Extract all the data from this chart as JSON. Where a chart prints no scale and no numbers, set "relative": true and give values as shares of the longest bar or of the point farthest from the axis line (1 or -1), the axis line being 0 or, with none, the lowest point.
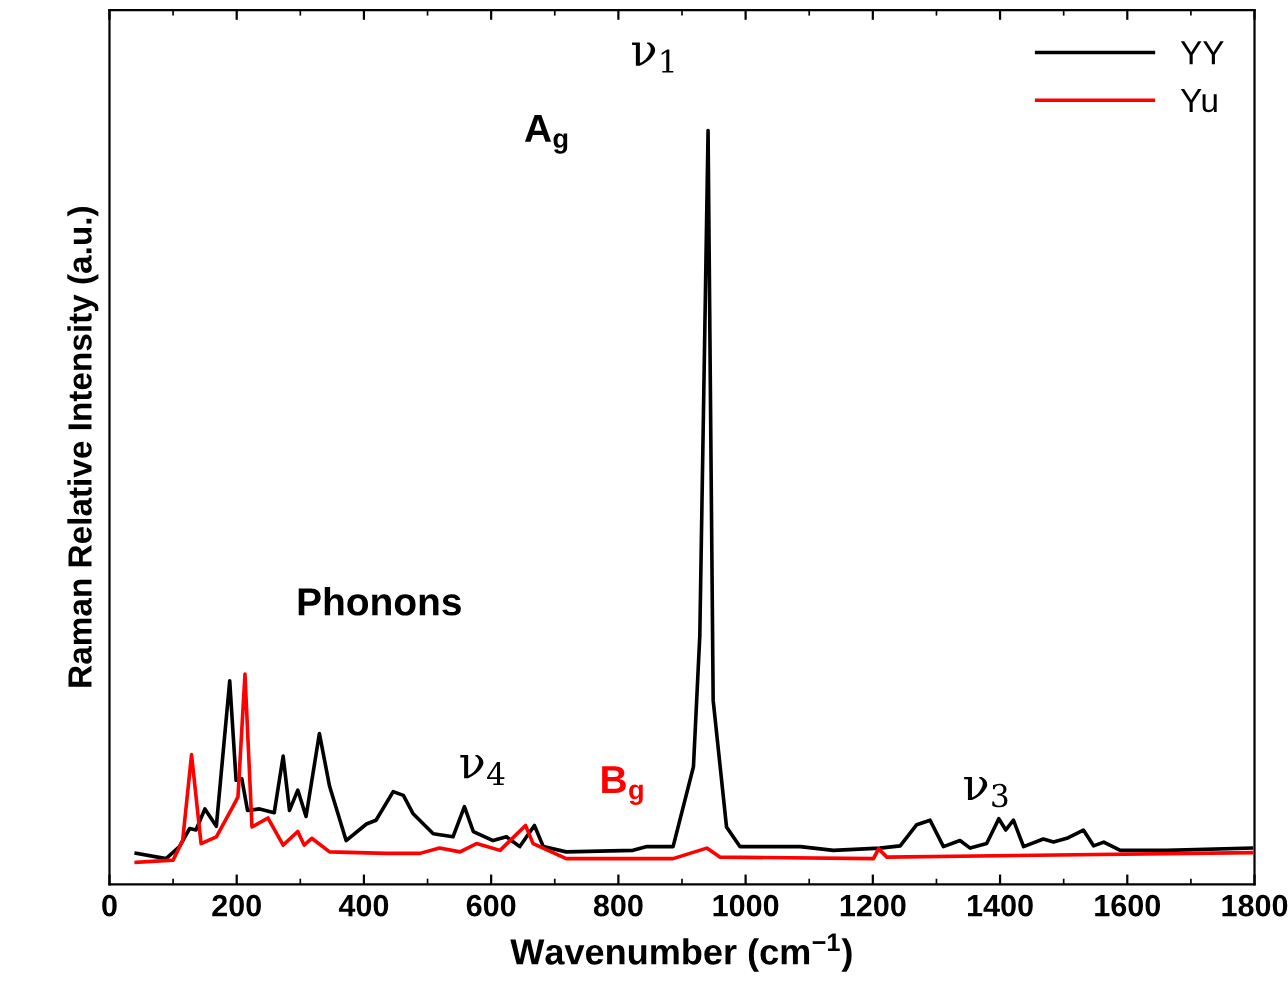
{
  "chart_data": {
    "type": "line",
    "relative": true,
    "xlabel": "Wavenumber (cm$^{−1}$)",
    "ylabel": "Raman Relative Intensity (a.u.)",
    "xlim": [
      0,
      1800
    ],
    "xticks": [
      0,
      200,
      400,
      600,
      800,
      1000,
      1200,
      1400,
      1600,
      1800
    ],
    "tick_labels": "x",
    "grid": false,
    "legend": "top right",
    "annotations": [
      "A$_{g}$",
      "ν$_{1}$",
      "Phonons",
      "ν$_{4}$",
      "B$_{g}$",
      "ν$_{3}$"
    ],
    "series": [
      {
        "name": "YY",
        "color": "#000000",
        "x": [
          42,
          89,
          110,
          126,
          136,
          150,
          168,
          189,
          199,
          208,
          217,
          236,
          259,
          273,
          283,
          296,
          309,
          330,
          346,
          372,
          404,
          419,
          446,
          462,
          477,
          509,
          540,
          558,
          572,
          603,
          624,
          645,
          668,
          682,
          718,
          823,
          845,
          886,
          918,
          928,
          941,
          949,
          970,
          991,
          1086,
          1138,
          1211,
          1243,
          1269,
          1290,
          1311,
          1337,
          1353,
          1379,
          1398,
          1409,
          1421,
          1437,
          1468,
          1484,
          1505,
          1531,
          1547,
          1563,
          1589,
          1662,
          1795
        ],
        "values": [
          0.041,
          0.034,
          0.05,
          0.074,
          0.072,
          0.1,
          0.077,
          0.27,
          0.138,
          0.14,
          0.098,
          0.1,
          0.095,
          0.17,
          0.098,
          0.125,
          0.09,
          0.2,
          0.13,
          0.058,
          0.08,
          0.085,
          0.123,
          0.118,
          0.094,
          0.067,
          0.063,
          0.103,
          0.07,
          0.058,
          0.063,
          0.05,
          0.078,
          0.05,
          0.043,
          0.045,
          0.05,
          0.05,
          0.156,
          0.33,
          1.0,
          0.244,
          0.076,
          0.05,
          0.05,
          0.045,
          0.048,
          0.051,
          0.079,
          0.085,
          0.05,
          0.058,
          0.048,
          0.054,
          0.087,
          0.072,
          0.085,
          0.05,
          0.06,
          0.056,
          0.061,
          0.072,
          0.051,
          0.056,
          0.045,
          0.045,
          0.048
        ]
      },
      {
        "name": "Yu",
        "color": "#ff0000",
        "x": [
          42,
          100,
          115,
          129,
          144,
          168,
          194,
          202,
          213,
          224,
          249,
          273,
          296,
          306,
          318,
          346,
          435,
          488,
          519,
          551,
          577,
          614,
          654,
          666,
          718,
          886,
          939,
          960,
          1201,
          1209,
          1222,
          1795
        ],
        "values": [
          0.029,
          0.032,
          0.058,
          0.172,
          0.054,
          0.063,
          0.103,
          0.116,
          0.279,
          0.076,
          0.088,
          0.052,
          0.07,
          0.052,
          0.061,
          0.043,
          0.041,
          0.041,
          0.048,
          0.043,
          0.054,
          0.045,
          0.078,
          0.054,
          0.034,
          0.034,
          0.048,
          0.036,
          0.034,
          0.047,
          0.036,
          0.042
        ]
      }
    ]
  }
}
